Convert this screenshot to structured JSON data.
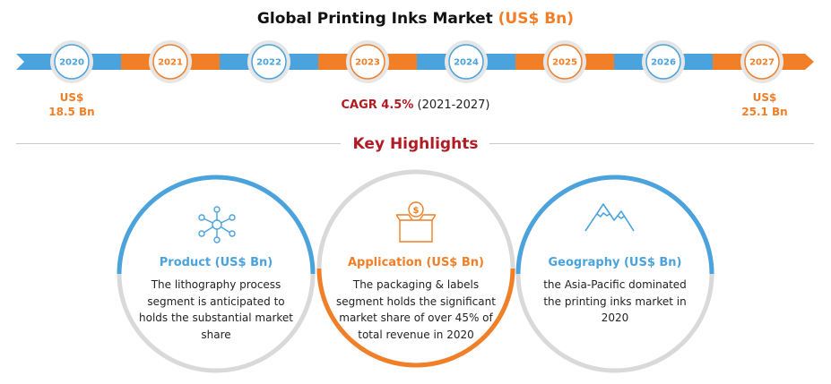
{
  "header": {
    "title": "Global Printing Inks Market",
    "unit": "(US$ Bn)"
  },
  "timeline": {
    "years": [
      "2020",
      "2021",
      "2022",
      "2023",
      "2024",
      "2025",
      "2026",
      "2027"
    ],
    "start_value": {
      "currency": "US$",
      "amount": "18.5 Bn"
    },
    "end_value": {
      "currency": "US$",
      "amount": "25.1 Bn"
    },
    "cagr_label": "CAGR 4.5%",
    "cagr_period": "(2021-2027)"
  },
  "highlights": {
    "heading": "Key Highlights",
    "cards": [
      {
        "title": "Product (US$ Bn)",
        "body": "The lithography process segment is anticipated to holds the substantial market share",
        "icon": "network-icon"
      },
      {
        "title": "Application (US$ Bn)",
        "body": "The packaging & labels segment holds the significant market share of over 45% of total revenue in 2020",
        "icon": "dollar-box-icon"
      },
      {
        "title": "Geography (US$ Bn)",
        "body": "the Asia-Pacific dominated the printing inks market in 2020",
        "icon": "mountain-icon"
      }
    ]
  },
  "colors": {
    "blue": "#4aa3dc",
    "orange": "#f07f28",
    "dark_red": "#b01c24",
    "gray_ring": "#d9d9d9"
  }
}
